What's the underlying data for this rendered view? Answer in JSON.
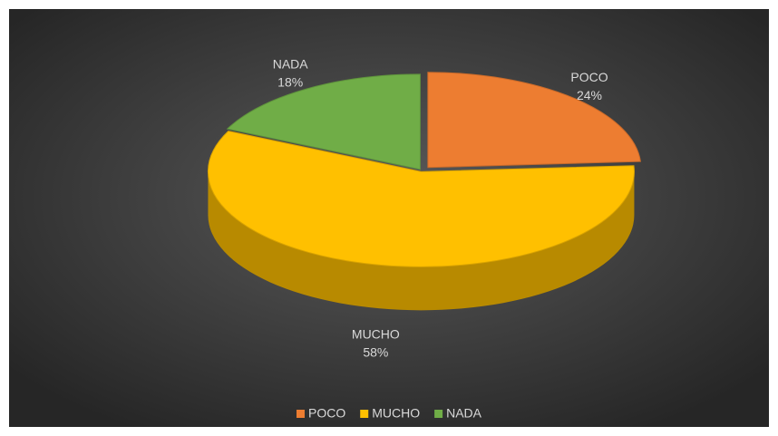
{
  "chart_data": {
    "type": "pie",
    "categories": [
      "POCO",
      "MUCHO",
      "NADA"
    ],
    "values": [
      24,
      58,
      18
    ],
    "value_labels": [
      "24%",
      "58%",
      "18%"
    ],
    "colors": [
      "#ed7d31",
      "#ffc000",
      "#70ad47"
    ],
    "legend": "bottom"
  }
}
